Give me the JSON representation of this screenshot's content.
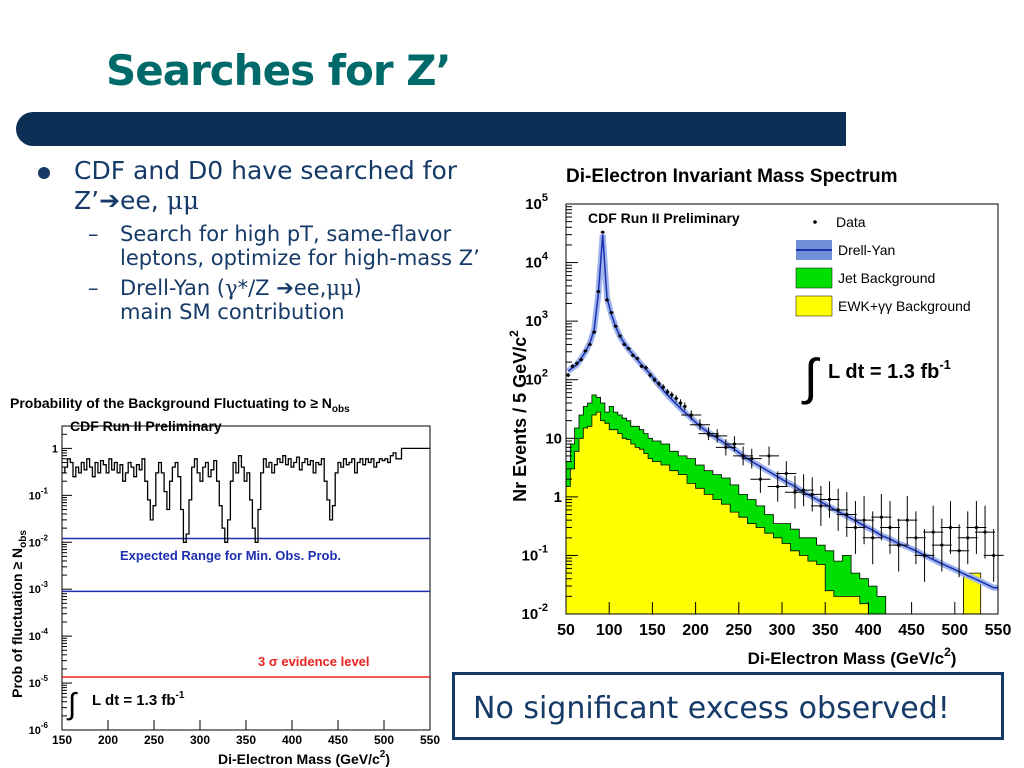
{
  "slide": {
    "title": "Searches for Z’",
    "bullets": [
      {
        "text_pre": "CDF and D0 have searched for Z’",
        "arrow": "➔",
        "text_post": "ee, ",
        "greek": "μμ"
      },
      {
        "text": "Search for high pT, same-flavor leptons, optimize for high-mass Z’"
      },
      {
        "text_pre": "Drell-Yan (",
        "greek1": "γ",
        "text_mid": "*/Z ",
        "arrow": "➔",
        "text_mid2": "ee,",
        "greek2": "μμ",
        "text_post": ")",
        "text_line2": "main SM contribution"
      }
    ],
    "callout": "No significant excess observed!",
    "dash": "–"
  },
  "chart_data": [
    {
      "type": "line",
      "title": "Probability of the Background Fluctuating to ≥ N",
      "title_sub": "obs",
      "ylabel": "Prob of fluctuation ≥ N",
      "ylabel_sub": "obs",
      "xlabel": "Di-Electron Mass (GeV/c",
      "xlabel_sup": "2",
      "xlabel_end": ")",
      "xlim": [
        150,
        550
      ],
      "ylim": [
        1e-06,
        3
      ],
      "yscale": "log",
      "x_ticks": [
        "150",
        "200",
        "250",
        "300",
        "350",
        "400",
        "450",
        "500",
        "550"
      ],
      "y_ticks": [
        {
          "base": "1",
          "exp": ""
        },
        {
          "base": "10",
          "exp": "-1"
        },
        {
          "base": "10",
          "exp": "-2"
        },
        {
          "base": "10",
          "exp": "-3"
        },
        {
          "base": "10",
          "exp": "-4"
        },
        {
          "base": "10",
          "exp": "-5"
        },
        {
          "base": "10",
          "exp": "-6"
        }
      ],
      "y_tick_values": [
        1,
        0.1,
        0.01,
        0.001,
        0.0001,
        1e-05,
        1e-06
      ],
      "annotation_top": "CDF Run II Preliminary",
      "expected_range_label": "Expected Range for Min. Obs. Prob.",
      "sigma_label": "3 σ evidence level",
      "lumi_label": "L dt = 1.3 fb",
      "lumi_sup": "-1",
      "integral": "∫",
      "expected_range": [
        0.012,
        0.0009
      ],
      "sigma_level": 1.35e-05,
      "colors": {
        "curve": "#000000",
        "expected": "#1c2fb0",
        "sigma": "#e8231c"
      },
      "series": [
        {
          "x": [
            150,
            153,
            156,
            159,
            162,
            165,
            168,
            171,
            174,
            177,
            180,
            183,
            186,
            189,
            192,
            195,
            198,
            201,
            204,
            207,
            210,
            213,
            216,
            219,
            222,
            225,
            228,
            231,
            234,
            237,
            240,
            243,
            246,
            249,
            252,
            255,
            258,
            261,
            264,
            267,
            270,
            273,
            276,
            279,
            282,
            285,
            288,
            291,
            294,
            297,
            300,
            303,
            306,
            309,
            312,
            315,
            318,
            321,
            324,
            327,
            330,
            333,
            336,
            339,
            342,
            345,
            348,
            351,
            354,
            357,
            360,
            363,
            366,
            369,
            372,
            375,
            378,
            381,
            384,
            387,
            390,
            393,
            396,
            399,
            402,
            405,
            408,
            411,
            414,
            417,
            420,
            423,
            426,
            429,
            432,
            435,
            438,
            441,
            444,
            447,
            450,
            453,
            456,
            459,
            462,
            465,
            468,
            471,
            474,
            477,
            480,
            483,
            486,
            489,
            492,
            495,
            498,
            501,
            504,
            507,
            510,
            513,
            516,
            519,
            522,
            525,
            528,
            531,
            534,
            537,
            540,
            543,
            546,
            549
          ],
          "values": [
            0.3,
            0.4,
            0.6,
            0.5,
            0.25,
            0.4,
            0.3,
            0.5,
            0.35,
            0.6,
            0.4,
            0.25,
            0.5,
            0.3,
            0.55,
            0.45,
            0.3,
            0.6,
            0.35,
            0.5,
            0.3,
            0.45,
            0.2,
            0.3,
            0.5,
            0.4,
            0.25,
            0.45,
            0.35,
            0.6,
            0.2,
            0.08,
            0.03,
            0.06,
            0.3,
            0.5,
            0.3,
            0.12,
            0.05,
            0.2,
            0.4,
            0.5,
            0.25,
            0.05,
            0.01,
            0.015,
            0.08,
            0.4,
            0.6,
            0.3,
            0.2,
            0.4,
            0.5,
            0.25,
            0.35,
            0.55,
            0.2,
            0.06,
            0.02,
            0.01,
            0.03,
            0.2,
            0.5,
            0.3,
            0.7,
            0.4,
            0.2,
            0.3,
            0.08,
            0.02,
            0.01,
            0.05,
            0.3,
            0.6,
            0.4,
            0.5,
            0.3,
            0.45,
            0.6,
            0.5,
            0.7,
            0.45,
            0.6,
            0.4,
            0.5,
            0.65,
            0.35,
            0.5,
            0.6,
            0.45,
            0.55,
            0.3,
            0.5,
            0.45,
            0.6,
            0.2,
            0.08,
            0.03,
            0.06,
            0.3,
            0.5,
            0.4,
            0.6,
            0.45,
            0.5,
            0.6,
            0.3,
            0.5,
            0.6,
            0.45,
            0.6,
            0.5,
            0.6,
            0.4,
            0.5,
            0.6,
            0.55,
            0.6,
            0.5,
            0.7,
            0.8,
            0.6,
            0.6,
            1,
            1,
            1,
            1,
            1,
            1,
            1,
            1,
            1,
            1,
            1
          ]
        }
      ]
    },
    {
      "type": "bar",
      "title": "Di-Electron Invariant Mass Spectrum",
      "xlabel": "Di-Electron Mass (GeV/c",
      "xlabel_sup": "2",
      "xlabel_end": ")",
      "ylabel": "Nr Events / 5 GeV/c",
      "ylabel_sup": "2",
      "xlim": [
        50,
        550
      ],
      "ylim": [
        0.01,
        100000
      ],
      "yscale": "log",
      "x_ticks": [
        "50",
        "100",
        "150",
        "200",
        "250",
        "300",
        "350",
        "400",
        "450",
        "500",
        "550"
      ],
      "y_ticks": [
        {
          "base": "10",
          "exp": "5"
        },
        {
          "base": "10",
          "exp": "4"
        },
        {
          "base": "10",
          "exp": "3"
        },
        {
          "base": "10",
          "exp": "2"
        },
        {
          "base": "10",
          "exp": ""
        },
        {
          "base": "1",
          "exp": ""
        },
        {
          "base": "10",
          "exp": "-1"
        },
        {
          "base": "10",
          "exp": "-2"
        }
      ],
      "y_tick_values": [
        100000,
        10000,
        1000,
        100,
        10,
        1,
        0.1,
        0.01
      ],
      "annotation": "CDF Run II Preliminary",
      "lumi_label": "L dt = 1.3 fb",
      "lumi_sup": "-1",
      "integral": "∫",
      "legend": [
        {
          "label": "Data",
          "kind": "marker"
        },
        {
          "label": "Drell-Yan",
          "kind": "band",
          "color": "#6f8fd8"
        },
        {
          "label": "Jet Background",
          "kind": "box",
          "color": "#00e000"
        },
        {
          "label": "EWK+γγ Background",
          "kind": "box",
          "color": "#ffff00"
        }
      ],
      "legend_placement": "top-right",
      "bin_width": 5,
      "bin_edges_start": 50,
      "series": [
        {
          "name": "Drell-Yan",
          "x": [
            52.5,
            57.5,
            62.5,
            67.5,
            72.5,
            77.5,
            82.5,
            87.5,
            92.5,
            97.5,
            102.5,
            107.5,
            112.5,
            117.5,
            122.5,
            127.5,
            132.5,
            137.5,
            142.5,
            147.5,
            155,
            165,
            175,
            185,
            195,
            205,
            215,
            225,
            235,
            245,
            255,
            265,
            275,
            285,
            295,
            305,
            315,
            325,
            335,
            345,
            355,
            365,
            375,
            385,
            395,
            405,
            415,
            425,
            435,
            445,
            455,
            465,
            475,
            485,
            495,
            505,
            515,
            525,
            535,
            545,
            550
          ],
          "values": [
            140,
            160,
            180,
            230,
            300,
            420,
            700,
            3000,
            30000,
            2500,
            1300,
            800,
            550,
            420,
            330,
            270,
            220,
            180,
            150,
            125,
            90,
            60,
            42,
            30,
            22,
            16,
            12.5,
            10,
            8,
            6.5,
            5,
            4,
            3.3,
            2.7,
            2.2,
            1.8,
            1.5,
            1.2,
            1.0,
            0.82,
            0.68,
            0.56,
            0.47,
            0.39,
            0.32,
            0.27,
            0.22,
            0.19,
            0.16,
            0.14,
            0.12,
            0.1,
            0.085,
            0.072,
            0.062,
            0.053,
            0.045,
            0.039,
            0.033,
            0.028,
            0.028
          ]
        },
        {
          "name": "Jet Background",
          "x": [
            50,
            55,
            60,
            65,
            70,
            75,
            80,
            85,
            90,
            95,
            100,
            105,
            110,
            115,
            120,
            125,
            130,
            135,
            140,
            145,
            150,
            160,
            170,
            180,
            190,
            200,
            210,
            220,
            230,
            240,
            250,
            260,
            270,
            280,
            290,
            300,
            310,
            320,
            330,
            340,
            350,
            360,
            370,
            380,
            390,
            400,
            410,
            420,
            430,
            440,
            450
          ],
          "values": [
            4,
            8,
            15,
            25,
            35,
            40,
            55,
            50,
            40,
            28,
            35,
            28,
            25,
            22,
            20,
            16,
            16,
            14,
            12,
            10,
            9,
            8,
            6,
            5,
            4.5,
            3.5,
            2.8,
            2.4,
            2.1,
            1.6,
            1.1,
            0.9,
            0.7,
            0.5,
            0.35,
            0.35,
            0.28,
            0.2,
            0.2,
            0.15,
            0.12,
            0.08,
            0.1,
            0.05,
            0.04,
            0.03,
            0.02,
            0.01,
            0.01,
            0.01,
            0.01
          ]
        },
        {
          "name": "EWK+γγ Background",
          "x": [
            50,
            55,
            60,
            65,
            70,
            75,
            80,
            85,
            90,
            95,
            100,
            105,
            110,
            115,
            120,
            125,
            130,
            135,
            140,
            145,
            150,
            160,
            170,
            180,
            190,
            200,
            210,
            220,
            230,
            240,
            250,
            260,
            270,
            280,
            290,
            300,
            310,
            320,
            330,
            340,
            350,
            360,
            370,
            380,
            390,
            400,
            410,
            420,
            430,
            440,
            450,
            460,
            470,
            480,
            490,
            500,
            510,
            520,
            530,
            540,
            550
          ],
          "values": [
            1.5,
            3,
            6,
            10,
            15,
            16,
            25,
            28,
            20,
            18,
            14,
            14,
            12,
            10,
            9.5,
            8,
            7,
            6.5,
            5.5,
            4.5,
            4,
            3.5,
            2.8,
            2.4,
            1.7,
            1.4,
            1.1,
            0.9,
            0.75,
            0.55,
            0.45,
            0.35,
            0.3,
            0.24,
            0.2,
            0.16,
            0.12,
            0.1,
            0.08,
            0.07,
            0.025,
            0.02,
            0.02,
            0.02,
            0.015,
            0.01,
            0.01,
            0.01,
            0.01,
            0.01,
            0.01,
            0.01,
            0.01,
            0.01,
            0.01,
            0.01,
            0.05,
            0.05,
            0.01,
            0.01,
            0.01
          ]
        },
        {
          "name": "Data",
          "x": [
            52.5,
            57.5,
            62.5,
            67.5,
            72.5,
            77.5,
            82.5,
            87.5,
            92.5,
            97.5,
            102.5,
            107.5,
            112.5,
            117.5,
            122.5,
            127.5,
            132.5,
            137.5,
            142.5,
            147.5,
            152.5,
            157.5,
            162.5,
            167.5,
            172.5,
            177.5,
            182.5,
            187.5,
            195,
            205,
            215,
            225,
            235,
            245,
            255,
            265,
            275,
            285,
            295,
            305,
            315,
            325,
            335,
            345,
            355,
            365,
            375,
            385,
            395,
            405,
            415,
            425,
            435,
            445,
            455,
            465,
            475,
            485,
            495,
            505,
            515,
            525,
            535,
            545
          ],
          "values": [
            120,
            170,
            190,
            220,
            310,
            400,
            650,
            3200,
            33000,
            2300,
            1400,
            820,
            560,
            400,
            340,
            260,
            230,
            170,
            160,
            120,
            100,
            85,
            75,
            62,
            55,
            48,
            40,
            35,
            25,
            17,
            12,
            11,
            7,
            8,
            5,
            4.5,
            2,
            5,
            1.5,
            2.5,
            1.2,
            1.3,
            1.1,
            0.7,
            0.9,
            0.6,
            0.5,
            0.3,
            0.4,
            0.2,
            0.45,
            0.3,
            0.15,
            0.4,
            0.2,
            0.1,
            0.25,
            0.15,
            0.3,
            0.12,
            0.2,
            0.3,
            0.25,
            0.1
          ]
        }
      ]
    }
  ]
}
